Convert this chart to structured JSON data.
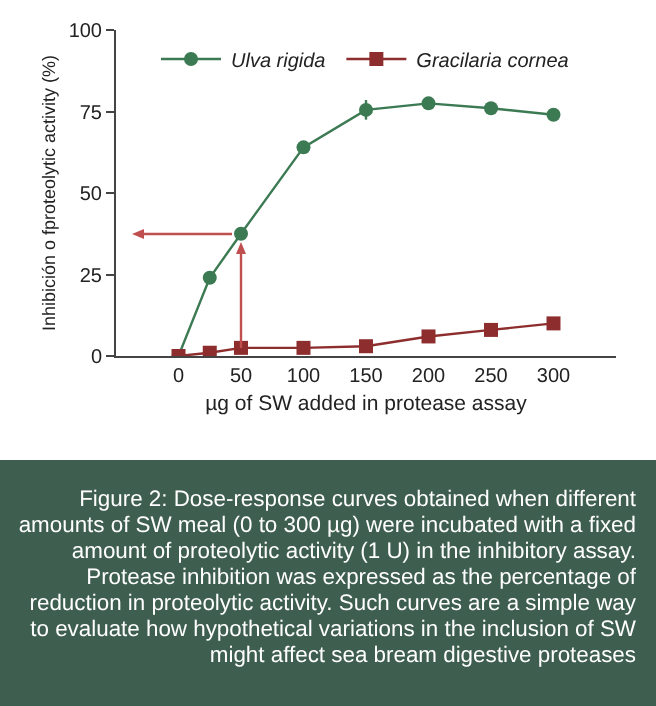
{
  "chart_data": {
    "type": "line",
    "xlabel": "µg of SW added in protease assay",
    "ylabel": "Inhibición o fproteolytic activity (%)",
    "x": [
      0,
      25,
      50,
      100,
      150,
      200,
      250,
      300
    ],
    "series": [
      {
        "name": "Ulva rigida",
        "color": "#3b7a52",
        "marker": "circle",
        "values": [
          0,
          24,
          37.5,
          64,
          75.5,
          77.5,
          76,
          74
        ],
        "errors": [
          null,
          null,
          null,
          null,
          3,
          null,
          null,
          null
        ]
      },
      {
        "name": "Gracilaria cornea",
        "color": "#8e2d2d",
        "marker": "square",
        "values": [
          0,
          1,
          2.5,
          2.5,
          3,
          6,
          8,
          10
        ]
      }
    ],
    "xlim": [
      -50,
      350
    ],
    "xticks": [
      0,
      50,
      100,
      150,
      200,
      250,
      300
    ],
    "ylim": [
      0,
      100
    ],
    "yticks": [
      0,
      25,
      50,
      75,
      100
    ],
    "grid": false,
    "legend": "top",
    "annotations": [
      "Figure 2: Dose-response curves obtained when different amounts of SW meal (0 to 300 µg) were incubated with a fixed amount of proteolytic activity (1 U) in the inhibitory assay. Protease inhibition was expressed as the percentage of reduction in proteolytic activity. Such curves are a simple way to evaluate how hypothetical variations in the inclusion of SW might affect sea bream digestive proteases"
    ]
  }
}
